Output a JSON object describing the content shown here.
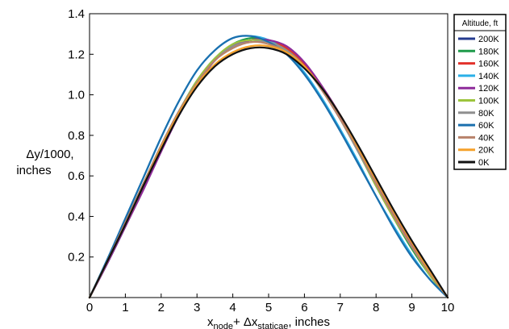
{
  "chart_data": {
    "type": "line",
    "title": "",
    "xlabel": {
      "prefix": "x",
      "prefix_sub": "node",
      "middle": "+ Δx",
      "middle_sub": "staticae",
      "suffix": ", inches"
    },
    "ylabel": [
      "Δy/1000,",
      "inches"
    ],
    "xlim": [
      0,
      10
    ],
    "ylim": [
      0,
      1.4
    ],
    "xticks": [
      0,
      1,
      2,
      3,
      4,
      5,
      6,
      7,
      8,
      9,
      10
    ],
    "yticks": [
      0.2,
      0.4,
      0.6,
      0.8,
      1.0,
      1.2,
      1.4
    ],
    "ytick_labels": [
      "0.2",
      "0.4",
      "0.6",
      "0.8",
      "1.0",
      "1.2",
      "1.4"
    ],
    "grid": false,
    "legend": {
      "title": "Altitude, ft",
      "placement": "right"
    },
    "x": [
      0,
      0.5,
      1,
      1.5,
      2,
      2.5,
      3,
      3.5,
      4,
      4.5,
      5,
      5.5,
      6,
      6.5,
      7,
      7.5,
      8,
      8.5,
      9,
      9.5,
      10
    ],
    "series": [
      {
        "name": "200K",
        "color": "#243b8f",
        "values": [
          0,
          0.17,
          0.35,
          0.54,
          0.73,
          0.9,
          1.05,
          1.17,
          1.24,
          1.27,
          1.27,
          1.23,
          1.15,
          1.03,
          0.89,
          0.73,
          0.57,
          0.41,
          0.26,
          0.12,
          0
        ]
      },
      {
        "name": "180K",
        "color": "#1f9a4a",
        "values": [
          0,
          0.18,
          0.37,
          0.56,
          0.75,
          0.92,
          1.07,
          1.18,
          1.25,
          1.28,
          1.27,
          1.23,
          1.15,
          1.03,
          0.88,
          0.72,
          0.55,
          0.39,
          0.24,
          0.11,
          0
        ]
      },
      {
        "name": "160K",
        "color": "#e3322b",
        "values": [
          0,
          0.18,
          0.37,
          0.56,
          0.75,
          0.92,
          1.06,
          1.17,
          1.24,
          1.27,
          1.27,
          1.23,
          1.15,
          1.03,
          0.89,
          0.73,
          0.56,
          0.4,
          0.25,
          0.12,
          0
        ]
      },
      {
        "name": "140K",
        "color": "#2ab0e8",
        "values": [
          0,
          0.19,
          0.39,
          0.59,
          0.79,
          0.97,
          1.12,
          1.22,
          1.28,
          1.29,
          1.27,
          1.21,
          1.11,
          0.98,
          0.83,
          0.67,
          0.5,
          0.35,
          0.21,
          0.09,
          0
        ]
      },
      {
        "name": "120K",
        "color": "#8e2a9a",
        "values": [
          0,
          0.17,
          0.35,
          0.53,
          0.72,
          0.9,
          1.05,
          1.17,
          1.24,
          1.27,
          1.27,
          1.24,
          1.16,
          1.04,
          0.9,
          0.74,
          0.57,
          0.41,
          0.26,
          0.12,
          0
        ]
      },
      {
        "name": "100K",
        "color": "#9cc43c",
        "values": [
          0,
          0.18,
          0.37,
          0.56,
          0.75,
          0.92,
          1.07,
          1.18,
          1.25,
          1.27,
          1.26,
          1.22,
          1.14,
          1.02,
          0.88,
          0.72,
          0.55,
          0.39,
          0.25,
          0.11,
          0
        ]
      },
      {
        "name": "80K",
        "color": "#8f8f8f",
        "values": [
          0,
          0.18,
          0.37,
          0.56,
          0.75,
          0.92,
          1.06,
          1.17,
          1.24,
          1.26,
          1.26,
          1.22,
          1.14,
          1.02,
          0.88,
          0.72,
          0.56,
          0.4,
          0.25,
          0.12,
          0
        ]
      },
      {
        "name": "60K",
        "color": "#1b6fae",
        "values": [
          0,
          0.19,
          0.39,
          0.59,
          0.79,
          0.97,
          1.12,
          1.22,
          1.28,
          1.29,
          1.26,
          1.2,
          1.1,
          0.97,
          0.82,
          0.66,
          0.5,
          0.34,
          0.2,
          0.09,
          0
        ]
      },
      {
        "name": "40K",
        "color": "#b8826a",
        "values": [
          0,
          0.18,
          0.37,
          0.56,
          0.75,
          0.92,
          1.06,
          1.17,
          1.23,
          1.26,
          1.25,
          1.21,
          1.14,
          1.02,
          0.88,
          0.73,
          0.56,
          0.4,
          0.25,
          0.12,
          0
        ]
      },
      {
        "name": "20K",
        "color": "#f5a12a",
        "values": [
          0,
          0.18,
          0.36,
          0.55,
          0.74,
          0.91,
          1.05,
          1.15,
          1.21,
          1.24,
          1.24,
          1.21,
          1.14,
          1.03,
          0.9,
          0.74,
          0.58,
          0.42,
          0.27,
          0.13,
          0
        ]
      },
      {
        "name": "0K",
        "color": "#111111",
        "values": [
          0,
          0.18,
          0.36,
          0.55,
          0.73,
          0.9,
          1.04,
          1.14,
          1.2,
          1.23,
          1.23,
          1.2,
          1.13,
          1.03,
          0.9,
          0.75,
          0.59,
          0.43,
          0.28,
          0.14,
          0
        ]
      }
    ]
  }
}
